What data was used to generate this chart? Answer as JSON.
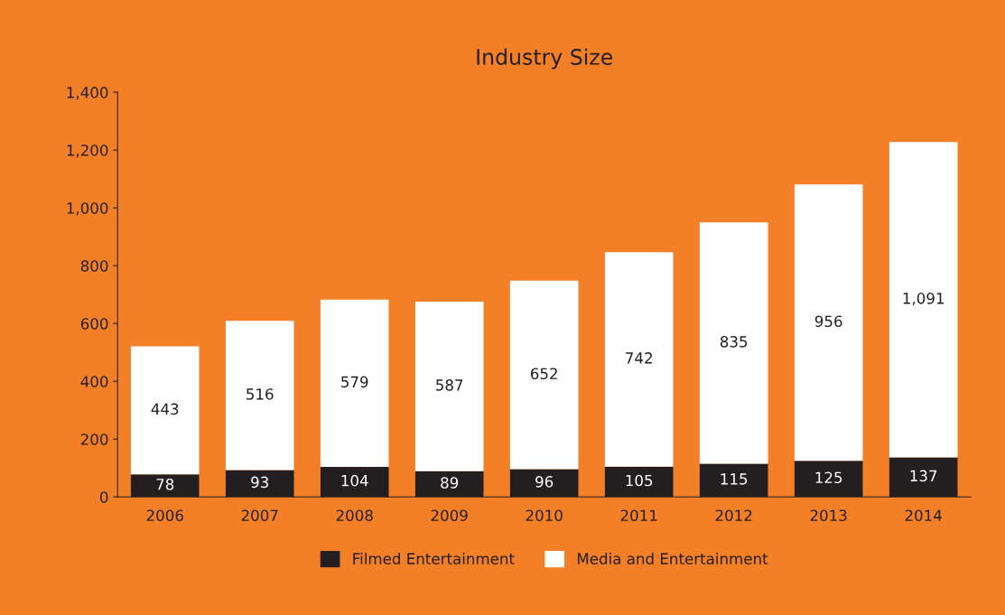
{
  "chart_data": {
    "type": "bar",
    "title": "Industry Size",
    "stacked": true,
    "legend": "bottom",
    "grid": false,
    "categories": [
      "2006",
      "2007",
      "2008",
      "2009",
      "2010",
      "2011",
      "2012",
      "2013",
      "2014"
    ],
    "series": [
      {
        "name": "Filmed Entertainment",
        "color": "#231f20",
        "values": [
          78,
          93,
          104,
          89,
          96,
          105,
          115,
          125,
          137
        ],
        "value_labels": [
          "78",
          "93",
          "104",
          "89",
          "96",
          "105",
          "115",
          "125",
          "137"
        ]
      },
      {
        "name": "Media and Entertainment",
        "color": "#ffffff",
        "values": [
          443,
          516,
          579,
          587,
          652,
          742,
          835,
          956,
          1091
        ],
        "value_labels": [
          "443",
          "516",
          "579",
          "587",
          "652",
          "742",
          "835",
          "956",
          "1,091"
        ]
      }
    ],
    "ylim": [
      0,
      1400
    ],
    "yticks": [
      0,
      200,
      400,
      600,
      800,
      {
        "value": 1000,
        "label": "1,000"
      },
      {
        "value": 1200,
        "label": "1,200"
      },
      {
        "value": 1400,
        "label": "1,400"
      }
    ]
  }
}
